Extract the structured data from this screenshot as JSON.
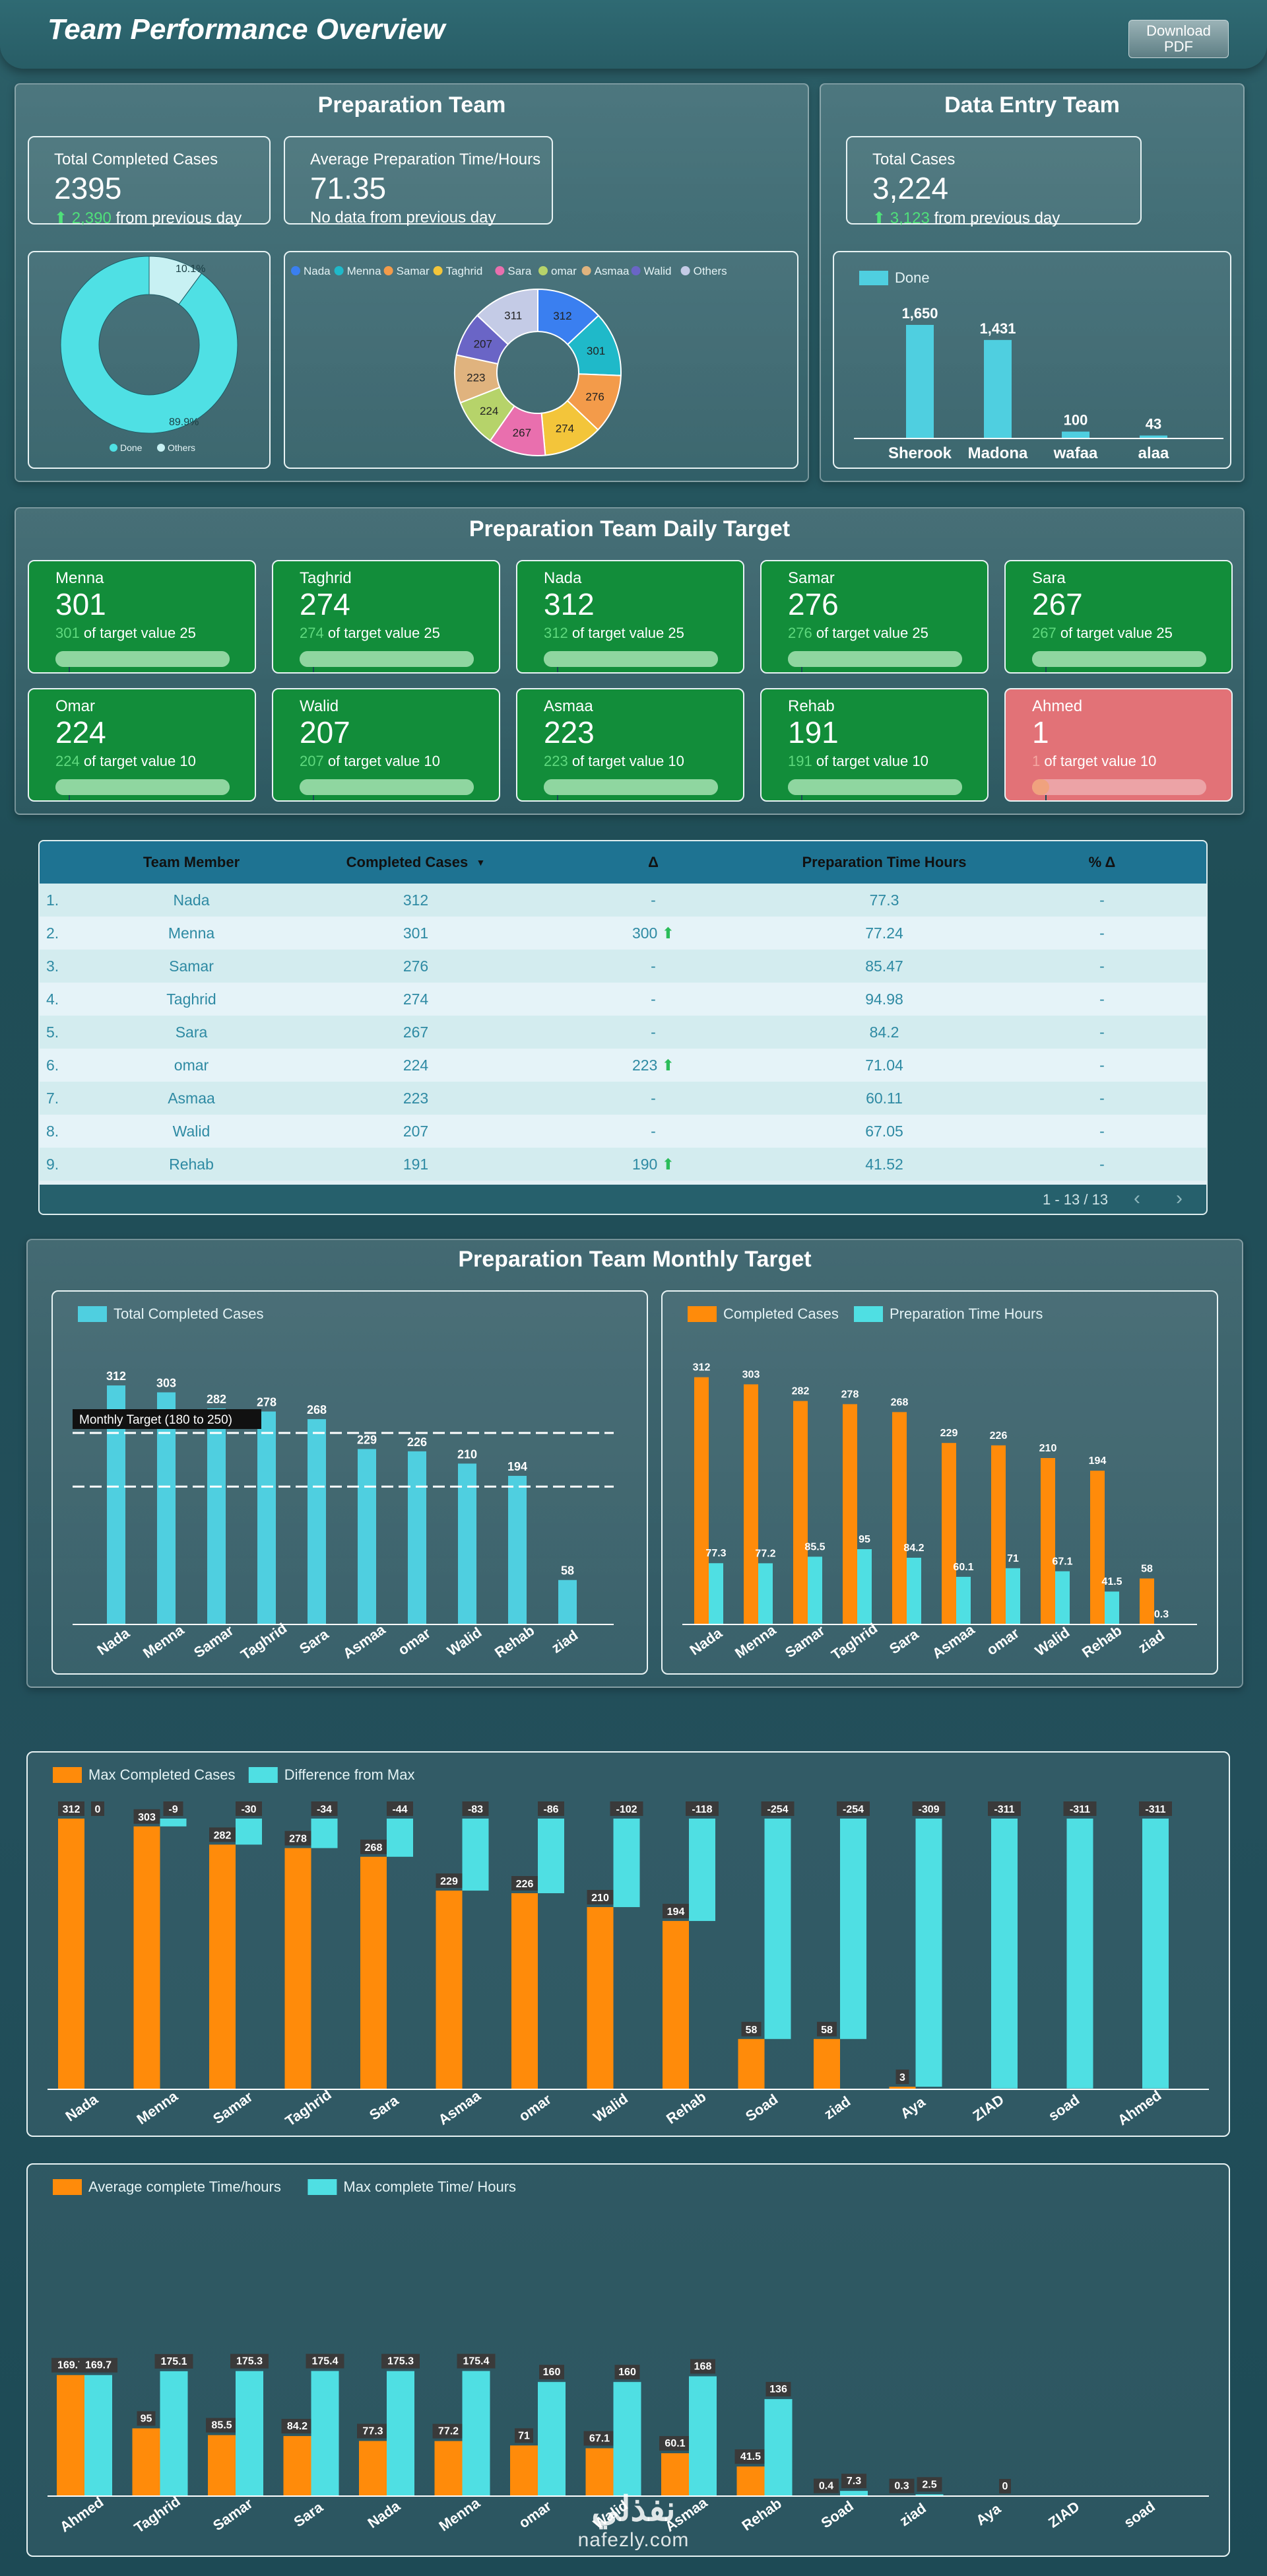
{
  "header": {
    "title": "Team Performance Overview",
    "download_label": "Download PDF"
  },
  "prep": {
    "title": "Preparation Team",
    "kpi1": {
      "label": "Total Completed Cases",
      "value": "2395",
      "delta": "2,390",
      "suffix": "from previous day"
    },
    "kpi2": {
      "label": "Average Preparation Time/Hours",
      "value": "71.35",
      "note": "No data from previous day"
    },
    "donut": {
      "done_pct": 89.9,
      "others_pct": 10.1,
      "done_label": "89.9%",
      "others_label": "10.1%",
      "legend": [
        "Done",
        "Others"
      ],
      "colors": [
        "#4fe0e4",
        "#c8f1f3"
      ]
    },
    "members_donut": {
      "legend": [
        "Nada",
        "Menna",
        "Samar",
        "Taghrid",
        "Sara",
        "omar",
        "Asmaa",
        "Walid",
        "Others"
      ],
      "values": [
        312,
        301,
        276,
        274,
        267,
        224,
        223,
        207,
        311
      ],
      "colors": [
        "#3a7ff0",
        "#1fb9c9",
        "#f39b4a",
        "#f3c53a",
        "#e96fae",
        "#b6d36a",
        "#e0b37e",
        "#6a65c6",
        "#c4cbe6"
      ]
    }
  },
  "data_entry": {
    "title": "Data Entry Team",
    "kpi": {
      "label": "Total Cases",
      "value": "3,224",
      "delta": "3,123",
      "suffix": "from previous day"
    },
    "chart": {
      "legend": "Done",
      "categories": [
        "Sherook",
        "Madona",
        "wafaa",
        "alaa"
      ],
      "values": [
        1650,
        1431,
        100,
        43
      ],
      "labels": [
        "1,650",
        "1,431",
        "100",
        "43"
      ]
    }
  },
  "daily_target": {
    "title": "Preparation Team Daily Target",
    "tiles": [
      {
        "name": "Menna",
        "value": "301",
        "num": "301",
        "text": "of target value 25",
        "fill": 1,
        "status": "good"
      },
      {
        "name": "Taghrid",
        "value": "274",
        "num": "274",
        "text": "of target value 25",
        "fill": 1,
        "status": "good"
      },
      {
        "name": "Nada",
        "value": "312",
        "num": "312",
        "text": "of target value 25",
        "fill": 1,
        "status": "good"
      },
      {
        "name": "Samar",
        "value": "276",
        "num": "276",
        "text": "of target value 25",
        "fill": 1,
        "status": "good"
      },
      {
        "name": "Sara",
        "value": "267",
        "num": "267",
        "text": "of target value 25",
        "fill": 1,
        "status": "good"
      },
      {
        "name": "Omar",
        "value": "224",
        "num": "224",
        "text": "of target value 10",
        "fill": 1,
        "status": "good"
      },
      {
        "name": "Walid",
        "value": "207",
        "num": "207",
        "text": "of target value 10",
        "fill": 1,
        "status": "good"
      },
      {
        "name": "Asmaa",
        "value": "223",
        "num": "223",
        "text": "of target value 10",
        "fill": 1,
        "status": "good"
      },
      {
        "name": "Rehab",
        "value": "191",
        "num": "191",
        "text": "of target value 10",
        "fill": 1,
        "status": "good"
      },
      {
        "name": "Ahmed",
        "value": "1",
        "num": "1",
        "text": "of target value 10",
        "fill": 0.1,
        "status": "bad"
      }
    ]
  },
  "table": {
    "headers": [
      "Team Member",
      "Completed Cases",
      "Δ",
      "Preparation Time Hours",
      "% Δ"
    ],
    "rows": [
      {
        "idx": "1.",
        "name": "Nada",
        "cases": "312",
        "delta": "-",
        "time": "77.3",
        "pct": "-"
      },
      {
        "idx": "2.",
        "name": "Menna",
        "cases": "301",
        "delta": "300",
        "time": "77.24",
        "pct": "-"
      },
      {
        "idx": "3.",
        "name": "Samar",
        "cases": "276",
        "delta": "-",
        "time": "85.47",
        "pct": "-"
      },
      {
        "idx": "4.",
        "name": "Taghrid",
        "cases": "274",
        "delta": "-",
        "time": "94.98",
        "pct": "-"
      },
      {
        "idx": "5.",
        "name": "Sara",
        "cases": "267",
        "delta": "-",
        "time": "84.2",
        "pct": "-"
      },
      {
        "idx": "6.",
        "name": "omar",
        "cases": "224",
        "delta": "223",
        "time": "71.04",
        "pct": "-"
      },
      {
        "idx": "7.",
        "name": "Asmaa",
        "cases": "223",
        "delta": "-",
        "time": "60.11",
        "pct": "-"
      },
      {
        "idx": "8.",
        "name": "Walid",
        "cases": "207",
        "delta": "-",
        "time": "67.05",
        "pct": "-"
      },
      {
        "idx": "9.",
        "name": "Rehab",
        "cases": "191",
        "delta": "190",
        "time": "41.52",
        "pct": "-"
      }
    ],
    "pagination": "1 - 13 / 13"
  },
  "monthly": {
    "title": "Preparation Team Monthly Target"
  },
  "chart_data": [
    {
      "type": "bar",
      "legend": [
        "Total Completed Cases"
      ],
      "categories": [
        "Nada",
        "Menna",
        "Samar",
        "Taghrid",
        "Sara",
        "Asmaa",
        "omar",
        "Walid",
        "Rehab",
        "ziad"
      ],
      "values": [
        312,
        303,
        282,
        278,
        268,
        229,
        226,
        210,
        194,
        58
      ],
      "annotation": "Monthly Target (180 to 250)",
      "reference_lines": [
        250,
        180
      ]
    },
    {
      "type": "bar",
      "categories": [
        "Nada",
        "Menna",
        "Samar",
        "Taghrid",
        "Sara",
        "Asmaa",
        "omar",
        "Walid",
        "Rehab",
        "ziad"
      ],
      "series": [
        {
          "name": "Completed Cases",
          "values": [
            312,
            303,
            282,
            278,
            268,
            229,
            226,
            210,
            194,
            58
          ],
          "color": "#ff8b0a"
        },
        {
          "name": "Preparation Time Hours",
          "values": [
            77.3,
            77.2,
            85.5,
            95,
            84.2,
            60.1,
            71,
            67.1,
            41.5,
            0.3
          ],
          "color": "#4fdfe3"
        }
      ]
    },
    {
      "type": "bar",
      "categories": [
        "Nada",
        "Menna",
        "Samar",
        "Taghrid",
        "Sara",
        "Asmaa",
        "omar",
        "Walid",
        "Rehab",
        "Soad",
        "ziad",
        "Aya",
        "ZIAD",
        "soad",
        "Ahmed"
      ],
      "series": [
        {
          "name": "Max Completed Cases",
          "values": [
            312,
            303,
            282,
            278,
            268,
            229,
            226,
            210,
            194,
            58,
            58,
            3,
            null,
            null,
            null
          ],
          "color": "#ff8b0a"
        },
        {
          "name": "Difference from Max",
          "values": [
            0,
            -9,
            -30,
            -34,
            -44,
            -83,
            -86,
            -102,
            -118,
            -254,
            -254,
            -309,
            -311,
            -311,
            -311
          ],
          "color": "#4fdfe3"
        }
      ]
    },
    {
      "type": "bar",
      "categories": [
        "Ahmed",
        "Taghrid",
        "Samar",
        "Sara",
        "Nada",
        "Menna",
        "omar",
        "Walid",
        "Asmaa",
        "Rehab",
        "Soad",
        "ziad",
        "Aya",
        "ZIAD",
        "soad"
      ],
      "series": [
        {
          "name": "Average complete Time/hours",
          "values": [
            169.7,
            95,
            85.5,
            84.2,
            77.3,
            77.2,
            71,
            67.1,
            60.1,
            41.5,
            0.4,
            0.3,
            null,
            null,
            null
          ],
          "color": "#ff8b0a"
        },
        {
          "name": "Max complete Time/ Hours",
          "values": [
            169.7,
            175.1,
            175.3,
            175.4,
            175.3,
            175.4,
            160,
            160,
            168,
            136,
            7.3,
            2.5,
            0,
            null,
            null
          ],
          "color": "#4fdfe3"
        }
      ]
    }
  ],
  "footer": {
    "brand_arabic": "نفذلي",
    "brand_latin": "nafezly.com"
  }
}
